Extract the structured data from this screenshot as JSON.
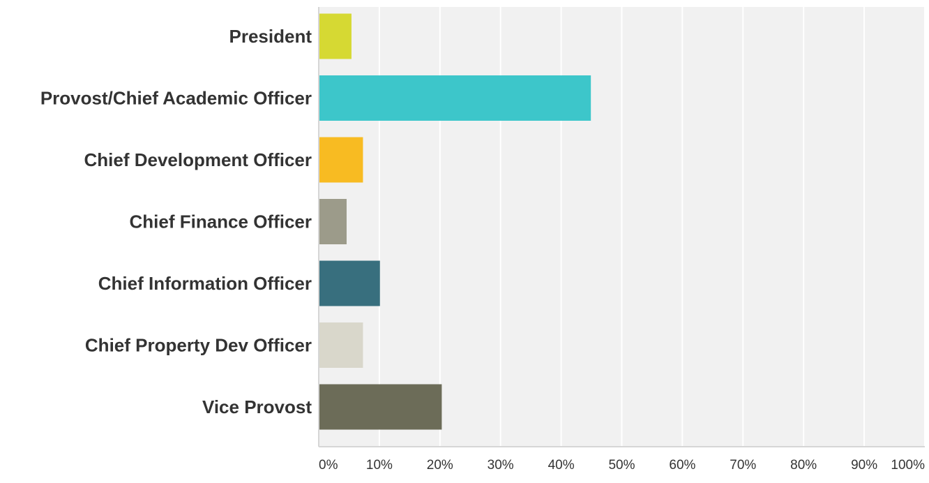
{
  "chart_data": {
    "type": "bar",
    "orientation": "horizontal",
    "categories": [
      "President",
      "Provost/Chief Academic Officer",
      "Chief Development  Officer",
      "Chief Finance Officer",
      "Chief Information Officer",
      "Chief Property Dev Officer",
      "Vice Provost"
    ],
    "values": [
      5.4,
      44.9,
      7.3,
      4.6,
      10.1,
      7.3,
      20.3
    ],
    "colors": [
      "#d6d933",
      "#3dc6ca",
      "#f8bb22",
      "#9c9b8a",
      "#386f7e",
      "#d9d7cb",
      "#6c6c58"
    ],
    "xlim": [
      0,
      100
    ],
    "x_ticks": [
      "0%",
      "10%",
      "20%",
      "30%",
      "40%",
      "50%",
      "60%",
      "70%",
      "80%",
      "90%",
      "100%"
    ],
    "grid": true,
    "plot_background": "#f1f1f1",
    "title": "",
    "xlabel": "",
    "ylabel": ""
  }
}
